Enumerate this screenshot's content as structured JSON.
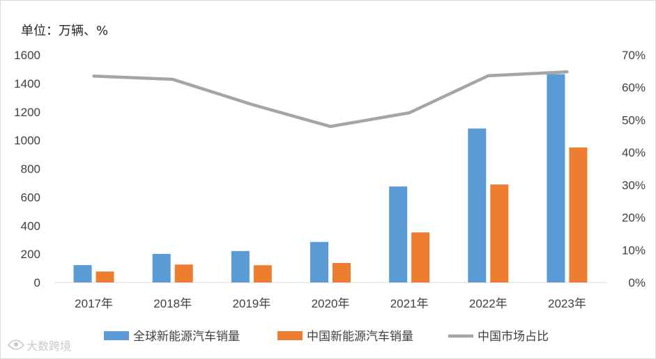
{
  "chart_data": {
    "type": "bar",
    "unit_label": "单位：万辆、%",
    "categories": [
      "2017年",
      "2018年",
      "2019年",
      "2020年",
      "2021年",
      "2022年",
      "2023年"
    ],
    "series": [
      {
        "name": "全球新能源汽车销量",
        "type": "bar",
        "axis": "left",
        "color": "#5B9BD5",
        "values": [
          122,
          201,
          221,
          285,
          675,
          1083,
          1465
        ]
      },
      {
        "name": "中国新能源汽车销量",
        "type": "bar",
        "axis": "left",
        "color": "#ED7D31",
        "values": [
          77,
          126,
          121,
          137,
          352,
          689,
          949
        ]
      },
      {
        "name": "中国市场占比",
        "type": "line",
        "axis": "right",
        "color": "#A5A5A5",
        "values": [
          63.5,
          62.5,
          54.8,
          48.0,
          52.2,
          63.6,
          64.8
        ]
      }
    ],
    "y_left": {
      "min": 0,
      "max": 1600,
      "ticks": [
        "0",
        "200",
        "400",
        "600",
        "800",
        "1000",
        "1200",
        "1400",
        "1600"
      ]
    },
    "y_right": {
      "min": 0,
      "max": 70,
      "ticks": [
        "0%",
        "10%",
        "20%",
        "30%",
        "40%",
        "50%",
        "60%",
        "70%"
      ]
    },
    "grid": false,
    "legend_position": "bottom"
  },
  "watermark": {
    "text": "大数跨境",
    "icon": "eye-logo-icon"
  }
}
